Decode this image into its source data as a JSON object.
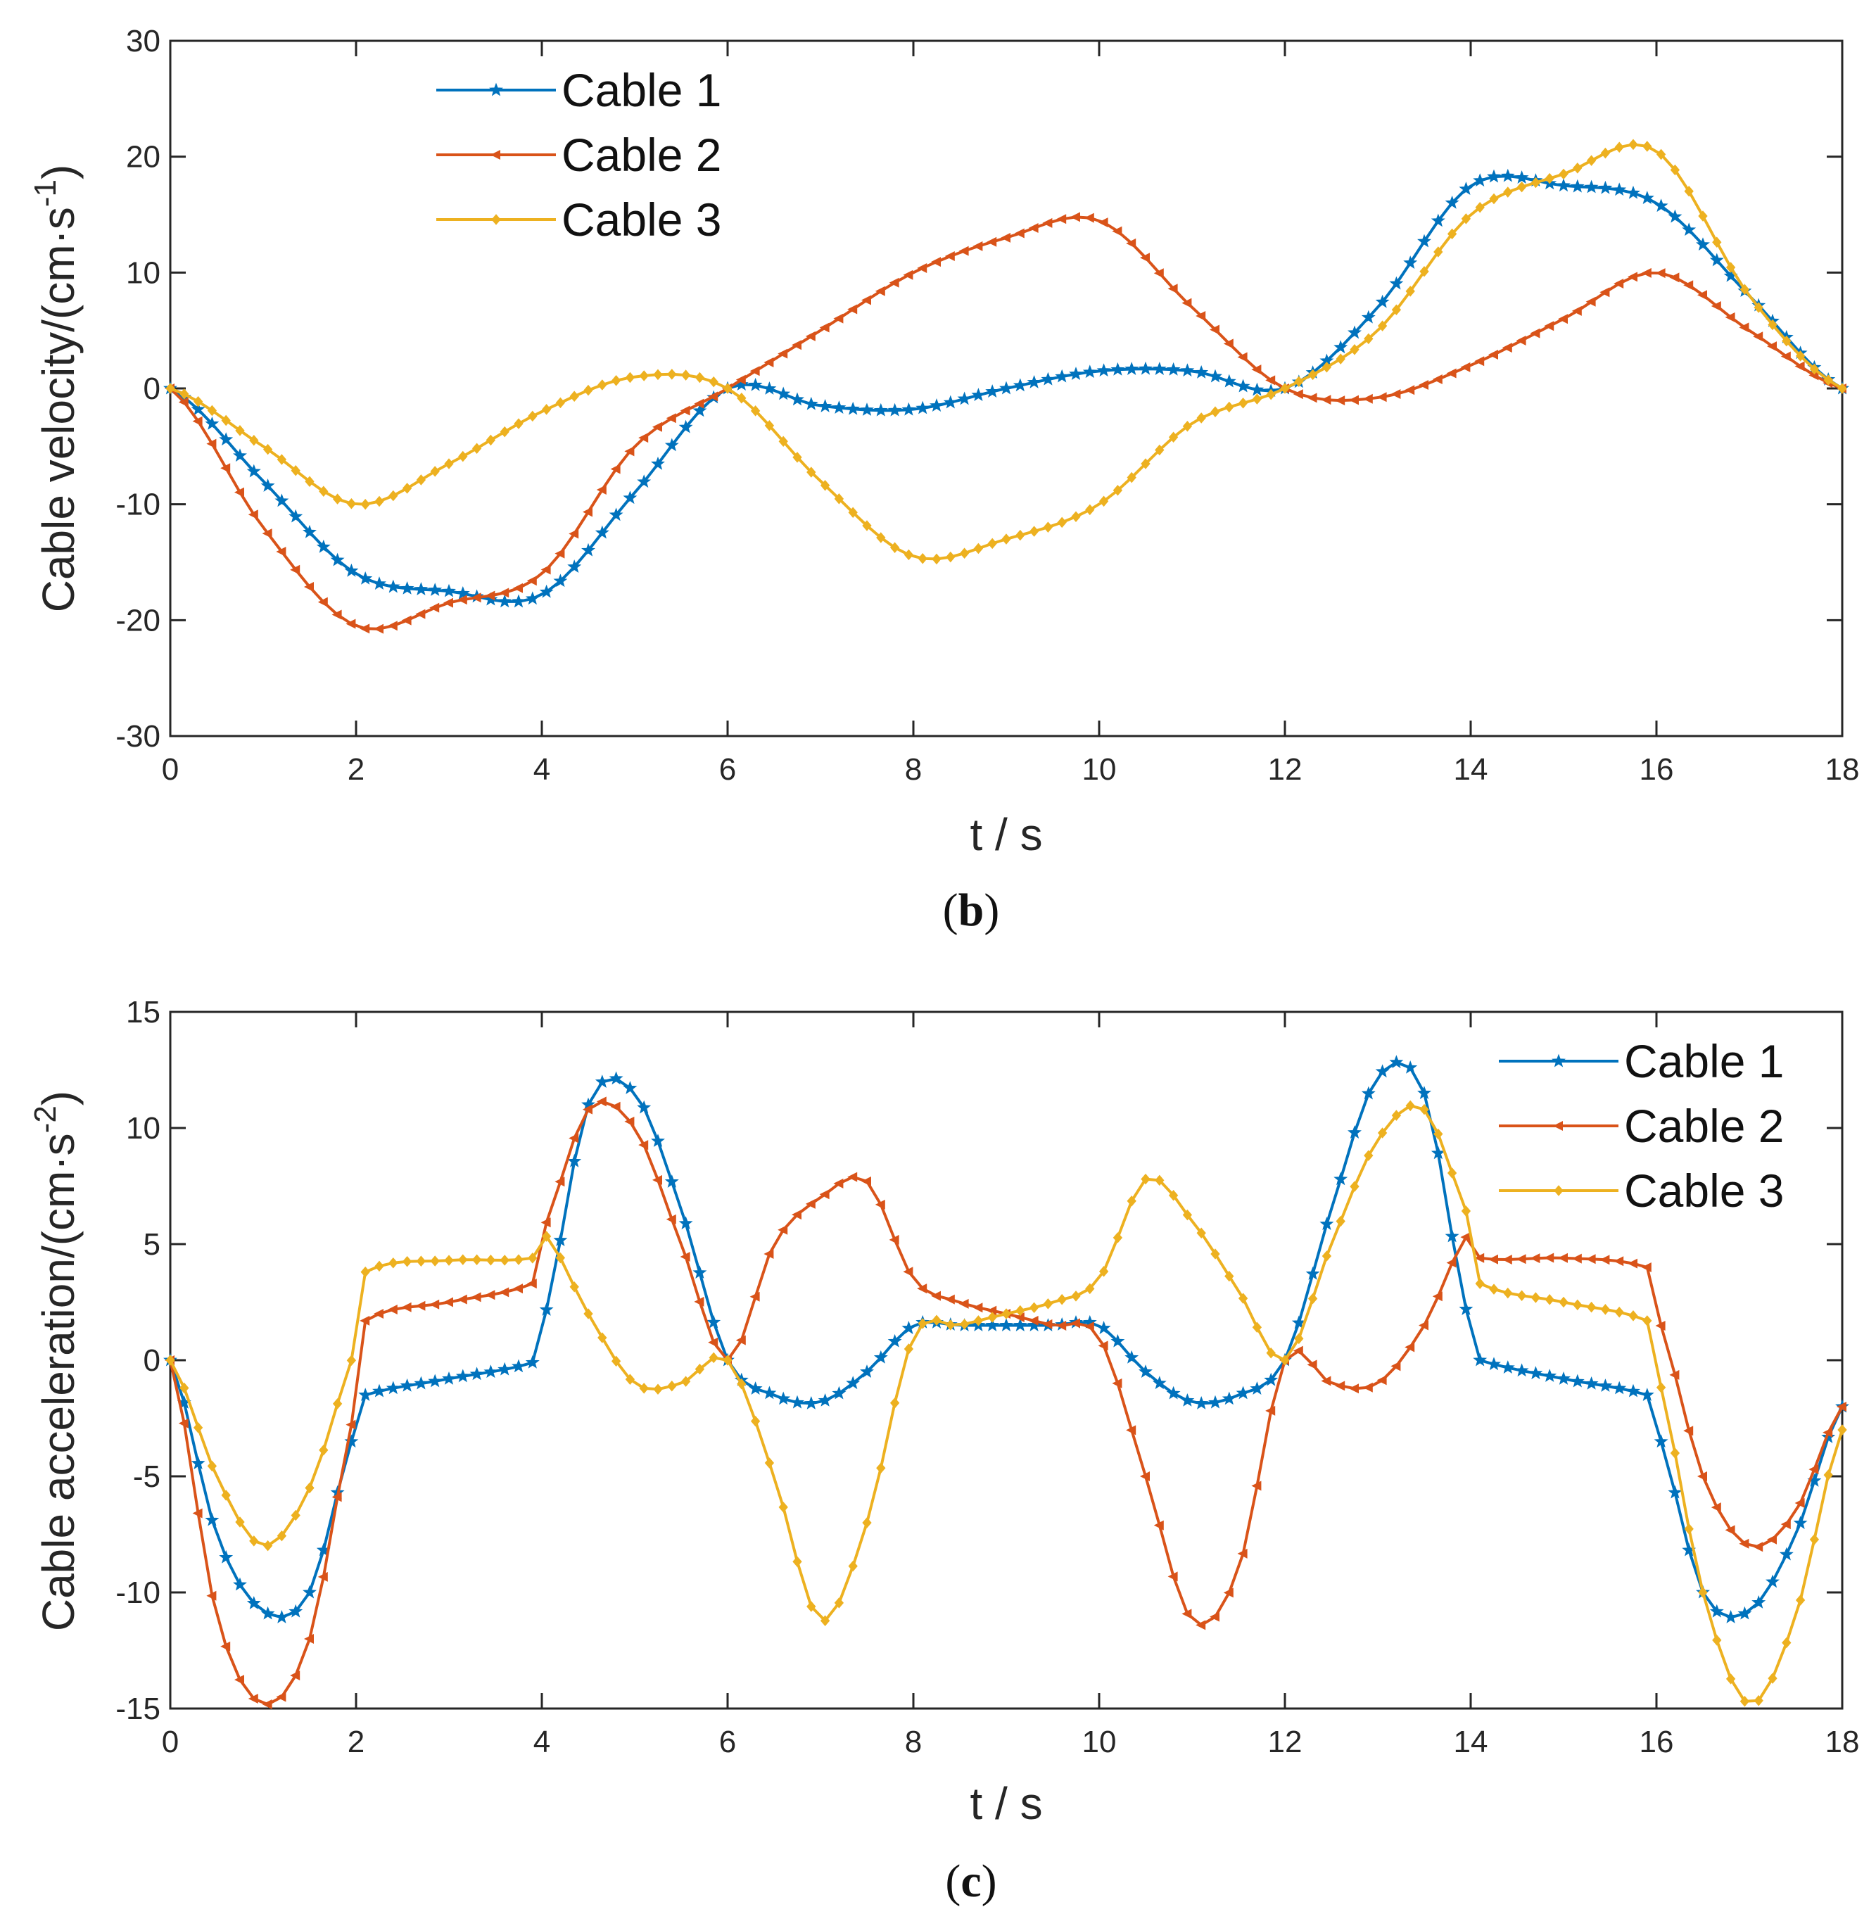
{
  "colors": {
    "cable1": "#0072BD",
    "cable2": "#D95319",
    "cable3": "#EDB120",
    "axis": "#262626"
  },
  "chart_data": [
    {
      "type": "line",
      "caption": "b",
      "xlabel": "t / s",
      "ylabel": "Cable velocity/(cm·s",
      "ylabel_exponent": "-1",
      "ylabel_close": ")",
      "xlim": [
        0,
        18
      ],
      "ylim": [
        -30,
        30
      ],
      "xticks": [
        0,
        2,
        4,
        6,
        8,
        10,
        12,
        14,
        16,
        18
      ],
      "yticks": [
        -30,
        -20,
        -10,
        0,
        10,
        20,
        30
      ],
      "legend_position": "top-left",
      "grid": false,
      "x": [
        0,
        1,
        2,
        3,
        4,
        5,
        6,
        7,
        8,
        9,
        10,
        11,
        12,
        13,
        14,
        15,
        16,
        17,
        18
      ],
      "series": [
        {
          "name": "Cable 1",
          "marker": "star",
          "color": "#0072BD",
          "values": [
            0,
            -8,
            -16,
            -17.5,
            -17.8,
            -9,
            0,
            -1.5,
            -1.8,
            0,
            1.5,
            1.5,
            0,
            7,
            17.5,
            17.5,
            16,
            8,
            0
          ]
        },
        {
          "name": "Cable 2",
          "marker": "triangle",
          "color": "#D95319",
          "values": [
            0,
            -12,
            -20.5,
            -18.5,
            -16,
            -5,
            0,
            5,
            10,
            13,
            14.5,
            7,
            0,
            -0.8,
            2,
            6,
            10,
            5,
            0
          ]
        },
        {
          "name": "Cable 3",
          "marker": "diamond",
          "color": "#EDB120",
          "values": [
            0,
            -5,
            -10,
            -6.5,
            -2,
            1,
            0,
            -8,
            -14.5,
            -13,
            -10,
            -3,
            0,
            5,
            15,
            18.5,
            20.5,
            8,
            0
          ]
        }
      ]
    },
    {
      "type": "line",
      "caption": "c",
      "xlabel": "t / s",
      "ylabel": "Cable acceleration/(cm·s",
      "ylabel_exponent": "-2",
      "ylabel_close": ")",
      "xlim": [
        0,
        18
      ],
      "ylim": [
        -15,
        15
      ],
      "xticks": [
        0,
        2,
        4,
        6,
        8,
        10,
        12,
        14,
        16,
        18
      ],
      "yticks": [
        -15,
        -10,
        -5,
        0,
        5,
        10,
        15
      ],
      "legend_position": "top-right",
      "grid": false,
      "x": [
        0,
        0.5,
        1,
        1.5,
        2,
        2.1,
        3,
        3.9,
        4,
        4.5,
        5,
        5.5,
        6,
        6.5,
        7,
        7.5,
        8,
        8.5,
        9,
        9.5,
        10,
        10.5,
        11,
        11.5,
        12,
        12.5,
        13,
        13.5,
        14,
        14.1,
        15,
        15.9,
        16,
        16.5,
        17,
        17.5,
        18
      ],
      "series": [
        {
          "name": "Cable 1",
          "marker": "star",
          "color": "#0072BD",
          "values": [
            0,
            -7.5,
            -10.8,
            -10,
            -3,
            -1.5,
            -0.8,
            -0.1,
            1.5,
            11,
            11.5,
            6.5,
            0,
            -1.5,
            -1.8,
            -0.5,
            1.5,
            1.5,
            1.5,
            1.5,
            1.5,
            -0.5,
            -1.8,
            -1.5,
            0,
            6.5,
            12.2,
            11.5,
            1.5,
            0,
            -0.8,
            -1.5,
            -3,
            -10,
            -10.8,
            -7.5,
            -2
          ]
        },
        {
          "name": "Cable 2",
          "marker": "triangle",
          "color": "#D95319",
          "values": [
            0,
            -11,
            -14.8,
            -12,
            -2,
            1.7,
            2.5,
            3.3,
            5.5,
            10.8,
            10,
            5,
            0,
            5,
            7,
            7.7,
            3.5,
            2.5,
            2,
            1.5,
            1,
            -5,
            -11.2,
            -9,
            0,
            -1,
            -1,
            1.5,
            5.5,
            4.4,
            4.4,
            4,
            2,
            -5,
            -8,
            -6.5,
            -2
          ]
        },
        {
          "name": "Cable 3",
          "marker": "diamond",
          "color": "#EDB120",
          "values": [
            0,
            -5,
            -8,
            -5.5,
            0.5,
            3.8,
            4.3,
            4.4,
            5.5,
            2,
            -1,
            -1,
            0,
            -5,
            -11.2,
            -7,
            1,
            1.5,
            2,
            2.5,
            3.5,
            7.8,
            6,
            3,
            0,
            5,
            9.5,
            10.8,
            6,
            3.3,
            2.5,
            1.7,
            -0.5,
            -10,
            -14.8,
            -11,
            -3
          ]
        }
      ]
    }
  ]
}
